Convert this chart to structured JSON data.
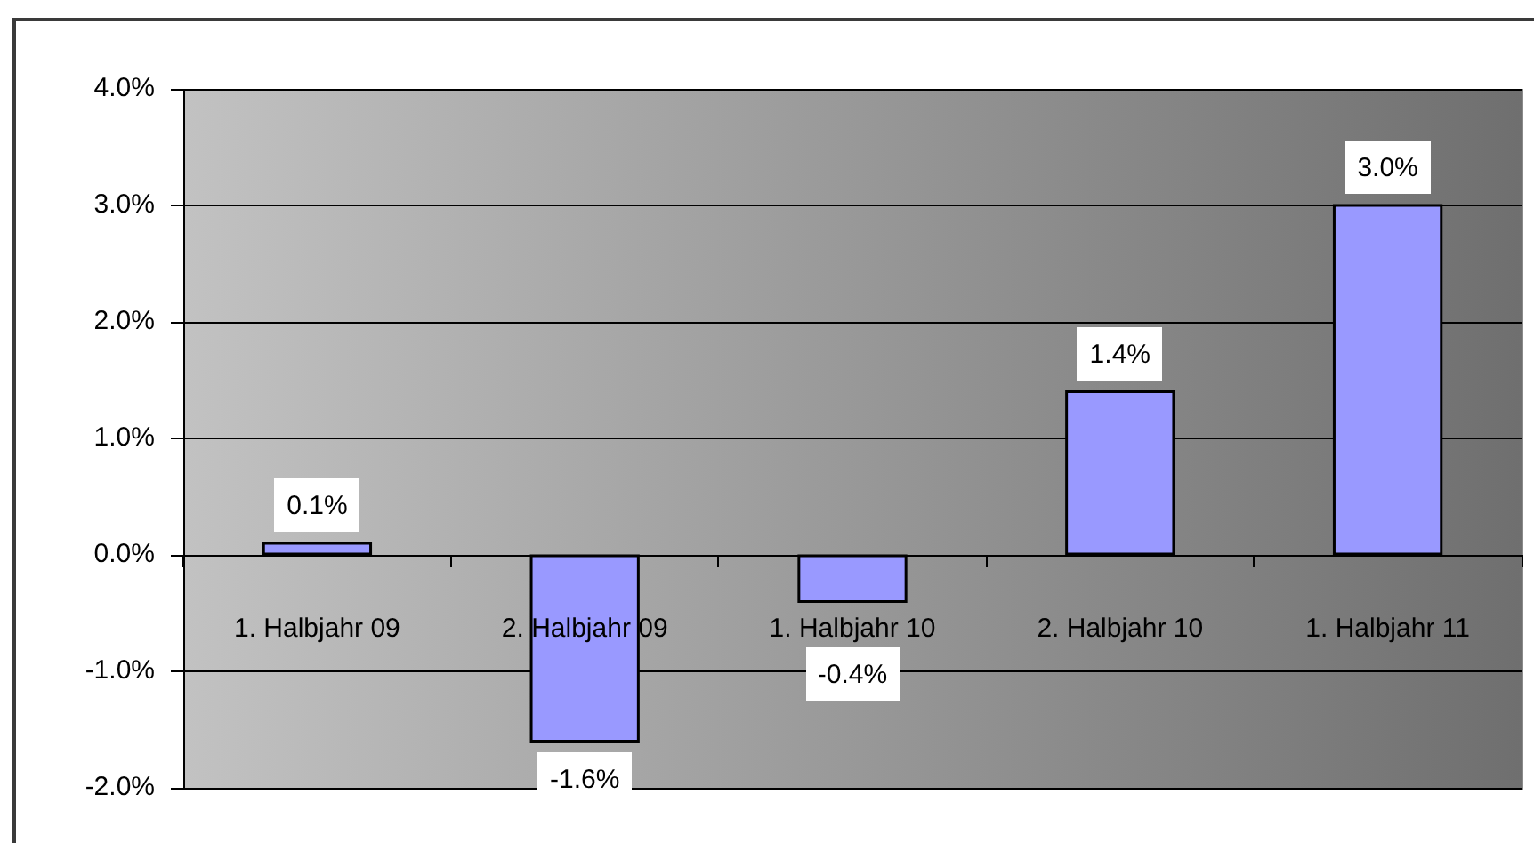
{
  "chart_data": {
    "type": "bar",
    "categories": [
      "1. Halbjahr 09",
      "2. Halbjahr 09",
      "1. Halbjahr 10",
      "2. Halbjahr 10",
      "1. Halbjahr 11"
    ],
    "values": [
      0.1,
      -1.6,
      -0.4,
      1.4,
      3.0
    ],
    "color": "#9999ff",
    "value_labels": [
      "0.1%",
      "-1.6%",
      "-0.4%",
      "1.4%",
      "3.0%"
    ],
    "ylim": [
      -2,
      4
    ],
    "yticks": [
      {
        "value": -2,
        "label": "-2.0%"
      },
      {
        "value": -1,
        "label": "-1.0%"
      },
      {
        "value": 0,
        "label": "0.0%"
      },
      {
        "value": 1,
        "label": "1.0%"
      },
      {
        "value": 2,
        "label": "2.0%"
      },
      {
        "value": 3,
        "label": "3.0%"
      },
      {
        "value": 4,
        "label": "4.0%"
      }
    ],
    "grid": "y"
  }
}
